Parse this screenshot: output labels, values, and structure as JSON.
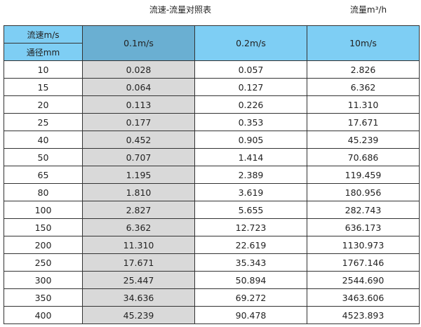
{
  "title": "流速-流量对照表",
  "unit_label": "流量m³/h",
  "header": {
    "velocity_label": "流速m/s",
    "diameter_label": "通径mm",
    "columns": [
      "0.1m/s",
      "0.2m/s",
      "10m/s"
    ]
  },
  "colors": {
    "header": "#7ecef4",
    "header_highlight": "#6aafd2",
    "highlight_column": "#d9d9d9"
  },
  "rows": [
    [
      "10",
      "0.028",
      "0.057",
      "2.826"
    ],
    [
      "15",
      "0.064",
      "0.127",
      "6.362"
    ],
    [
      "20",
      "0.113",
      "0.226",
      "11.310"
    ],
    [
      "25",
      "0.177",
      "0.353",
      "17.671"
    ],
    [
      "40",
      "0.452",
      "0.905",
      "45.239"
    ],
    [
      "50",
      "0.707",
      "1.414",
      "70.686"
    ],
    [
      "65",
      "1.195",
      "2.389",
      "119.459"
    ],
    [
      "80",
      "1.810",
      "3.619",
      "180.956"
    ],
    [
      "100",
      "2.827",
      "5.655",
      "282.743"
    ],
    [
      "150",
      "6.362",
      "12.723",
      "636.173"
    ],
    [
      "200",
      "11.310",
      "22.619",
      "1130.973"
    ],
    [
      "250",
      "17.671",
      "35.343",
      "1767.146"
    ],
    [
      "300",
      "25.447",
      "50.894",
      "2544.690"
    ],
    [
      "350",
      "34.636",
      "69.272",
      "3463.606"
    ],
    [
      "400",
      "45.239",
      "90.478",
      "4523.893"
    ]
  ]
}
